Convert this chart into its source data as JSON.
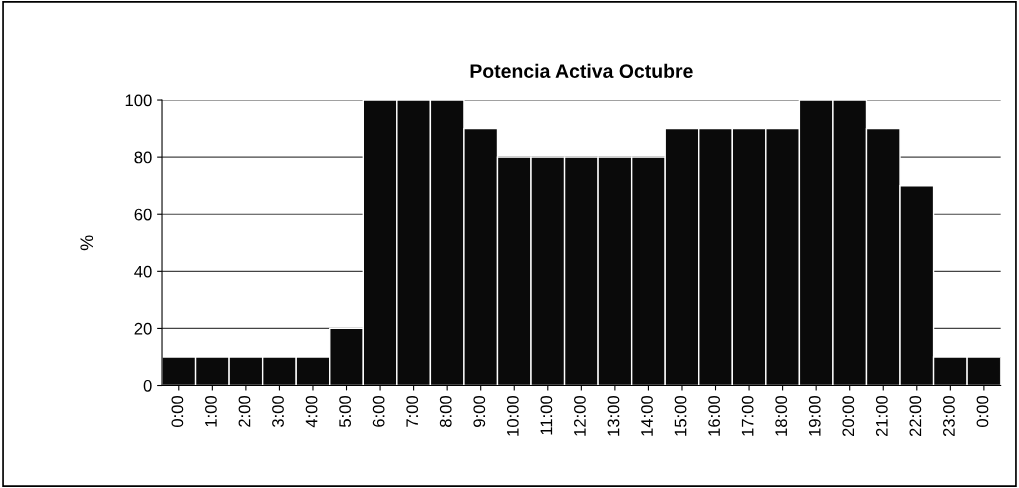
{
  "chart_data": {
    "type": "bar",
    "title": "Potencia Activa Octubre",
    "ylabel": "%",
    "categories": [
      "0:00",
      "1:00",
      "2:00",
      "3:00",
      "4:00",
      "5:00",
      "6:00",
      "7:00",
      "8:00",
      "9:00",
      "10:00",
      "11:00",
      "12:00",
      "13:00",
      "14:00",
      "15:00",
      "16:00",
      "17:00",
      "18:00",
      "19:00",
      "20:00",
      "21:00",
      "22:00",
      "23:00",
      "0:00"
    ],
    "values": [
      10,
      10,
      10,
      10,
      10,
      20,
      100,
      100,
      100,
      90,
      80,
      80,
      80,
      80,
      80,
      90,
      90,
      90,
      90,
      100,
      100,
      90,
      70,
      10,
      10
    ],
    "color": "#0a0a0a",
    "ylim": [
      0,
      100
    ],
    "yticks": [
      0,
      20,
      40,
      60,
      80,
      100
    ],
    "grid": "y",
    "legend": false
  }
}
